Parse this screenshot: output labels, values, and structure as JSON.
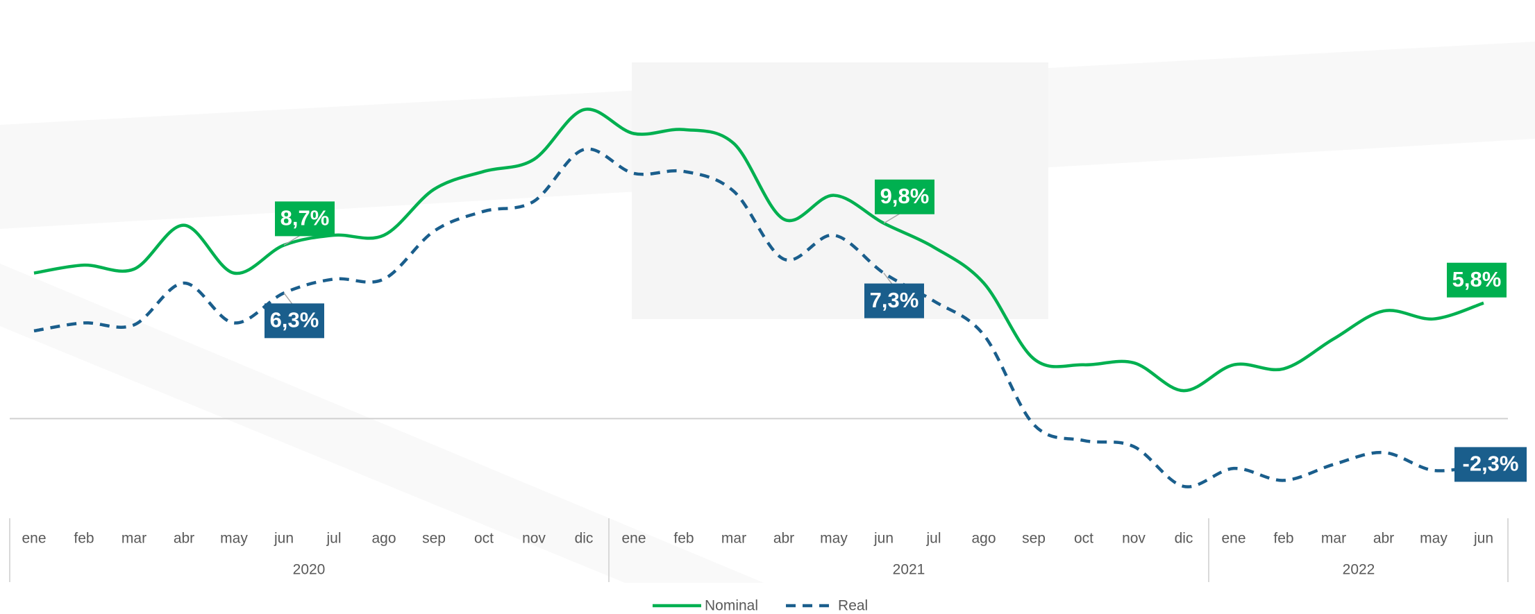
{
  "chart_data": {
    "type": "line",
    "categories": [
      "ene",
      "feb",
      "mar",
      "abr",
      "may",
      "jun",
      "jul",
      "ago",
      "sep",
      "oct",
      "nov",
      "dic",
      "ene",
      "feb",
      "mar",
      "abr",
      "may",
      "jun",
      "jul",
      "ago",
      "sep",
      "oct",
      "nov",
      "dic",
      "ene",
      "feb",
      "mar",
      "abr",
      "may",
      "jun"
    ],
    "x_groups": [
      "2020",
      "2021",
      "2022"
    ],
    "series": [
      {
        "name": "Nominal",
        "color": "#00b050",
        "dash": false,
        "values": [
          7.3,
          7.7,
          7.5,
          9.7,
          7.3,
          8.7,
          9.2,
          9.2,
          11.5,
          12.4,
          13.0,
          15.5,
          14.3,
          14.5,
          13.8,
          10.0,
          11.2,
          9.8,
          8.6,
          6.8,
          3.0,
          2.7,
          2.8,
          1.4,
          2.7,
          2.5,
          4.0,
          5.4,
          5.0,
          5.8
        ],
        "value_labels": [
          null,
          null,
          null,
          null,
          null,
          "8,7%",
          null,
          null,
          null,
          null,
          null,
          null,
          null,
          null,
          null,
          null,
          null,
          "9,8%",
          null,
          null,
          null,
          null,
          null,
          null,
          null,
          null,
          null,
          null,
          null,
          "5,8%"
        ]
      },
      {
        "name": "Real",
        "color": "#1a5e8c",
        "dash": true,
        "values": [
          4.4,
          4.8,
          4.7,
          6.8,
          4.8,
          6.3,
          7.0,
          7.0,
          9.4,
          10.4,
          10.9,
          13.5,
          12.3,
          12.4,
          11.4,
          8.0,
          9.2,
          7.3,
          5.9,
          4.2,
          -0.3,
          -1.1,
          -1.4,
          -3.4,
          -2.5,
          -3.1,
          -2.3,
          -1.7,
          -2.6,
          -2.3
        ],
        "value_labels": [
          null,
          null,
          null,
          null,
          null,
          "6,3%",
          null,
          null,
          null,
          null,
          null,
          null,
          null,
          null,
          null,
          null,
          null,
          "7,3%",
          null,
          null,
          null,
          null,
          null,
          null,
          null,
          null,
          null,
          null,
          null,
          "-2,3%"
        ]
      }
    ],
    "ylim": [
      -5,
      21
    ],
    "zero_line": true,
    "legend": "bottom"
  }
}
